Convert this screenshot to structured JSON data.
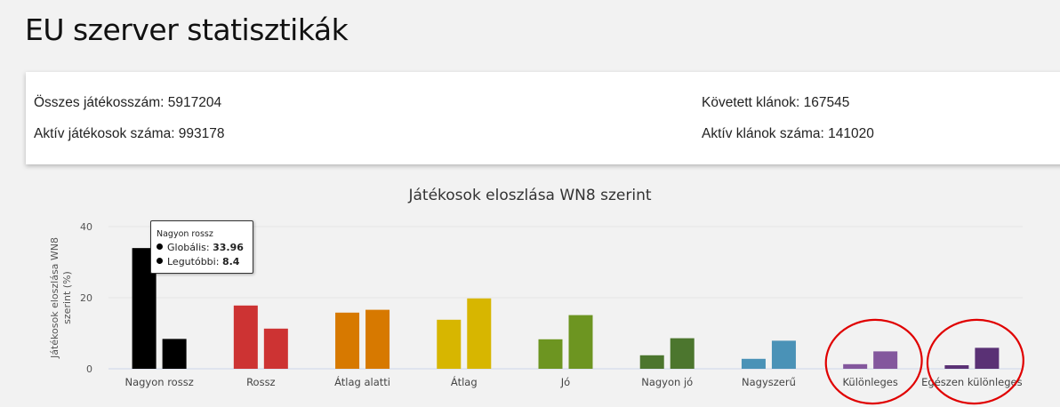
{
  "page": {
    "title": "EU szerver statisztikák"
  },
  "stats": {
    "total_players": "Összes játékosszám: 5917204",
    "active_players": "Aktív játékosok száma: 993178",
    "tracked_clans": "Követett klánok: 167545",
    "active_clans": "Aktív klánok száma: 141020"
  },
  "tooltip": {
    "title": "Nagyon rossz",
    "rows": [
      {
        "label": "Globális:",
        "value": "33.96"
      },
      {
        "label": "Legutóbbi:",
        "value": "8.4"
      }
    ]
  },
  "chart_data": {
    "type": "bar",
    "title": "Játékosok eloszlása WN8 szerint",
    "ylabel": "Játékosok eloszlása WN8 szerint (%)",
    "ylim": [
      0,
      40
    ],
    "yticks": [
      0,
      20,
      40
    ],
    "grid": true,
    "categories": [
      "Nagyon rossz",
      "Rossz",
      "Átlag alatti",
      "Átlag",
      "Jó",
      "Nagyon jó",
      "Nagyszerű",
      "Különleges",
      "Egészen különleges"
    ],
    "colors": [
      "#000000",
      "#cd3333",
      "#d77900",
      "#d7b600",
      "#6d9521",
      "#4c762e",
      "#4a92b7",
      "#83579d",
      "#5a3175"
    ],
    "series": [
      {
        "name": "Globális",
        "values": [
          33.96,
          17.8,
          15.8,
          13.8,
          8.3,
          3.8,
          2.8,
          1.3,
          1.0
        ]
      },
      {
        "name": "Legutóbbi",
        "values": [
          8.4,
          11.3,
          16.6,
          19.8,
          15.1,
          8.6,
          7.9,
          4.9,
          5.9
        ]
      }
    ]
  },
  "annotations": {
    "circled_categories": [
      "Különleges",
      "Egészen különleges"
    ],
    "color": "#e00000"
  }
}
